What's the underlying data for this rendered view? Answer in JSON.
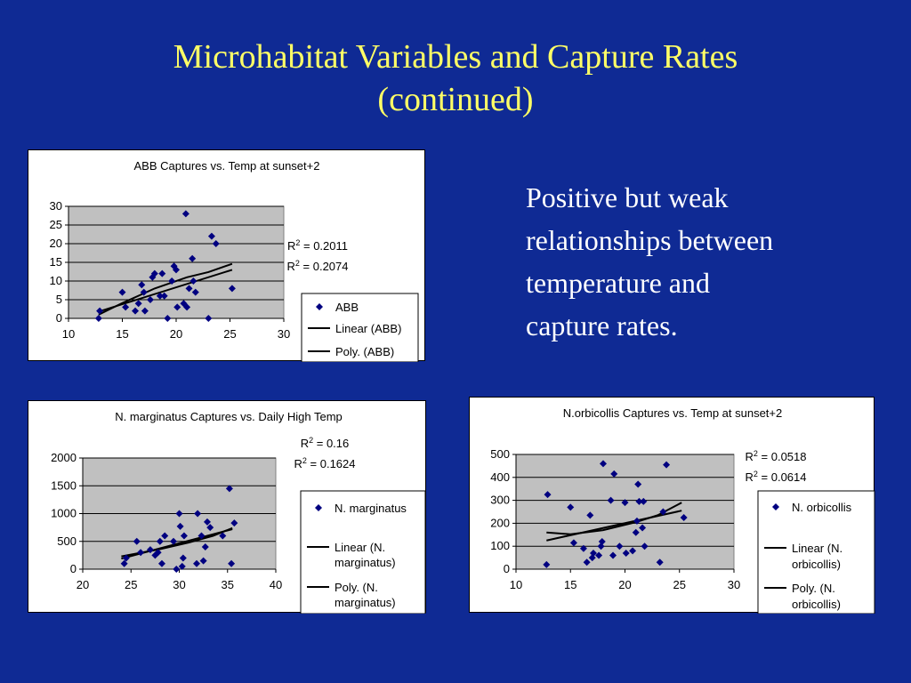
{
  "slide": {
    "title_line1": "Microhabitat Variables and Capture Rates",
    "title_line2": "(continued)",
    "bullet_lines": [
      "Positive but weak",
      "relationships between",
      "temperature and",
      "capture rates."
    ]
  },
  "colors": {
    "background": "#0f2a94",
    "title": "#ffff66",
    "text": "#ffffff",
    "plot_area": "#c0c0c0",
    "marker": "#000080",
    "trend": "#000000"
  },
  "chart_data": [
    {
      "type": "scatter",
      "title": "ABB Captures vs. Temp at sunset+2",
      "x_ticks": [
        "10",
        "15",
        "20",
        "25",
        "30"
      ],
      "y_ticks": [
        "0",
        "5",
        "10",
        "15",
        "20",
        "25",
        "30"
      ],
      "xlim": [
        10,
        30
      ],
      "ylim": [
        0,
        30
      ],
      "r2_linear": "0.2011",
      "r2_poly": "0.2074",
      "legend": [
        "ABB",
        "Linear (ABB)",
        "Poly. (ABB)"
      ],
      "legend_lines": [
        [
          "ABB"
        ],
        [
          "Linear (ABB)"
        ],
        [
          "Poly. (ABB)"
        ]
      ],
      "points": [
        [
          12.8,
          0
        ],
        [
          12.9,
          2
        ],
        [
          15,
          7
        ],
        [
          15.3,
          3
        ],
        [
          16.2,
          2
        ],
        [
          16.5,
          4
        ],
        [
          16.8,
          9
        ],
        [
          17,
          7
        ],
        [
          17.1,
          2
        ],
        [
          17.6,
          5
        ],
        [
          17.8,
          11
        ],
        [
          18,
          12
        ],
        [
          18.5,
          6
        ],
        [
          18.7,
          12
        ],
        [
          18.9,
          6
        ],
        [
          19.2,
          0
        ],
        [
          19.6,
          10
        ],
        [
          19.8,
          14
        ],
        [
          20,
          13
        ],
        [
          20.1,
          3
        ],
        [
          20.7,
          4
        ],
        [
          20.9,
          28
        ],
        [
          21,
          3
        ],
        [
          21.2,
          8
        ],
        [
          21.5,
          16
        ],
        [
          21.6,
          10
        ],
        [
          21.8,
          7
        ],
        [
          23,
          0
        ],
        [
          23.3,
          22
        ],
        [
          23.7,
          20
        ],
        [
          25.2,
          8
        ]
      ],
      "linear": [
        [
          12.8,
          1.8
        ],
        [
          25.2,
          13
        ]
      ],
      "poly": [
        [
          12.8,
          1
        ],
        [
          15,
          4.1
        ],
        [
          18,
          8
        ],
        [
          21,
          11
        ],
        [
          23,
          12.4
        ],
        [
          25.2,
          14.6
        ]
      ]
    },
    {
      "type": "scatter",
      "title": "N. marginatus Captures vs. Daily High Temp",
      "x_ticks": [
        "20",
        "25",
        "30",
        "35",
        "40"
      ],
      "y_ticks": [
        "0",
        "500",
        "1000",
        "1500",
        "2000"
      ],
      "xlim": [
        20,
        40
      ],
      "ylim": [
        0,
        2000
      ],
      "r2_linear": "0.16",
      "r2_poly": "0.1624",
      "legend": [
        "N. marginatus",
        "Linear (N. marginatus)",
        "Poly. (N. marginatus)"
      ],
      "legend_lines": [
        [
          "N. marginatus"
        ],
        [
          "Linear (N.",
          "marginatus)"
        ],
        [
          "Poly. (N.",
          "marginatus)"
        ]
      ],
      "points": [
        [
          24.3,
          100
        ],
        [
          24.5,
          200
        ],
        [
          25.6,
          500
        ],
        [
          26,
          300
        ],
        [
          27,
          350
        ],
        [
          27.5,
          250
        ],
        [
          27.8,
          300
        ],
        [
          28,
          500
        ],
        [
          28.2,
          100
        ],
        [
          28.5,
          600
        ],
        [
          29.4,
          500
        ],
        [
          29.7,
          0
        ],
        [
          30,
          1000
        ],
        [
          30.1,
          770
        ],
        [
          30.3,
          50
        ],
        [
          30.4,
          200
        ],
        [
          30.5,
          600
        ],
        [
          31.8,
          100
        ],
        [
          31.9,
          1000
        ],
        [
          32.3,
          600
        ],
        [
          32.5,
          150
        ],
        [
          32.7,
          400
        ],
        [
          32.9,
          850
        ],
        [
          33.2,
          750
        ],
        [
          34.5,
          600
        ],
        [
          35.2,
          1450
        ],
        [
          35.4,
          100
        ],
        [
          35.7,
          830
        ]
      ],
      "linear": [
        [
          24,
          190
        ],
        [
          35.5,
          720
        ]
      ],
      "poly": [
        [
          24,
          230
        ],
        [
          28,
          360
        ],
        [
          31,
          480
        ],
        [
          33.5,
          600
        ],
        [
          35.5,
          740
        ]
      ]
    },
    {
      "type": "scatter",
      "title": "N.orbicollis Captures vs. Temp at sunset+2",
      "x_ticks": [
        "10",
        "15",
        "20",
        "25",
        "30"
      ],
      "y_ticks": [
        "0",
        "100",
        "200",
        "300",
        "400",
        "500"
      ],
      "xlim": [
        10,
        30
      ],
      "ylim": [
        0,
        500
      ],
      "r2_linear": "0.0518",
      "r2_poly": "0.0614",
      "legend": [
        "N. orbicollis",
        "Linear (N. orbicollis)",
        "Poly. (N. orbicollis)"
      ],
      "legend_lines": [
        [
          "N. orbicollis"
        ],
        [
          "Linear (N.",
          "orbicollis)"
        ],
        [
          "Poly. (N.",
          "orbicollis)"
        ]
      ],
      "points": [
        [
          12.8,
          20
        ],
        [
          12.9,
          325
        ],
        [
          15,
          270
        ],
        [
          15.3,
          115
        ],
        [
          16.2,
          90
        ],
        [
          16.5,
          30
        ],
        [
          16.8,
          235
        ],
        [
          17,
          50
        ],
        [
          17.1,
          70
        ],
        [
          17.6,
          60
        ],
        [
          17.8,
          100
        ],
        [
          17.9,
          120
        ],
        [
          18,
          460
        ],
        [
          18.7,
          300
        ],
        [
          18.9,
          60
        ],
        [
          19,
          415
        ],
        [
          19.5,
          100
        ],
        [
          20,
          290
        ],
        [
          20.1,
          70
        ],
        [
          20.7,
          80
        ],
        [
          21,
          160
        ],
        [
          21.1,
          210
        ],
        [
          21.2,
          370
        ],
        [
          21.3,
          295
        ],
        [
          21.6,
          180
        ],
        [
          21.7,
          295
        ],
        [
          21.8,
          100
        ],
        [
          23.2,
          30
        ],
        [
          23.5,
          250
        ],
        [
          23.8,
          455
        ],
        [
          25.4,
          225
        ]
      ],
      "linear": [
        [
          12.8,
          125
        ],
        [
          25.2,
          255
        ]
      ],
      "poly": [
        [
          12.8,
          160
        ],
        [
          15,
          152
        ],
        [
          18,
          170
        ],
        [
          21,
          205
        ],
        [
          23,
          235
        ],
        [
          25.2,
          290
        ]
      ]
    }
  ]
}
